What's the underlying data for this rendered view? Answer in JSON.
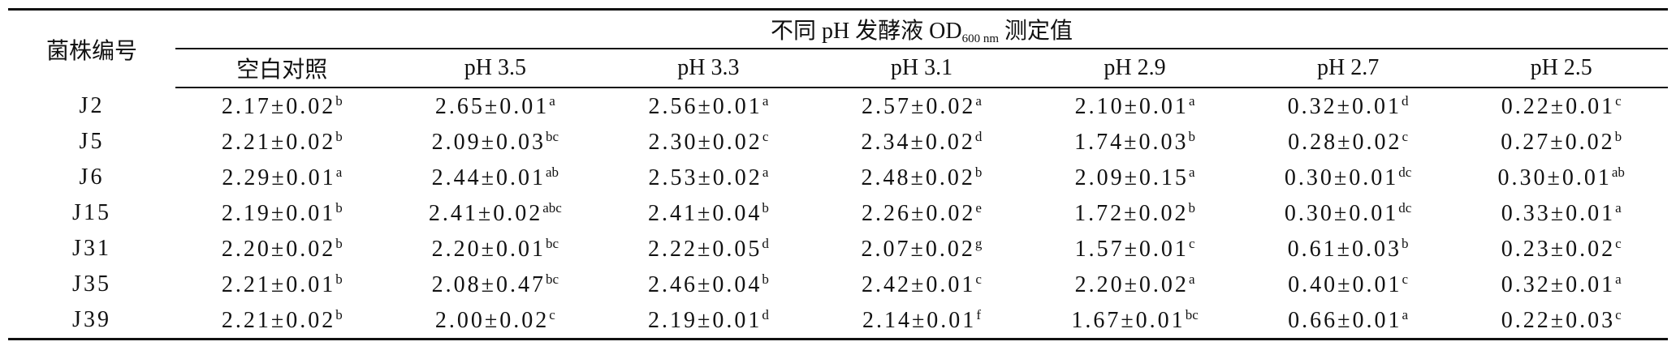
{
  "table": {
    "header": {
      "strain": "菌株编号",
      "title_main": "不同 pH 发酵液 OD",
      "title_sub": "600 nm",
      "title_end": "测定值",
      "columns": [
        "空白对照",
        "pH 3.5",
        "pH 3.3",
        "pH 3.1",
        "pH 2.9",
        "pH 2.7",
        "pH 2.5"
      ]
    },
    "rows": [
      {
        "strain": "J2",
        "cells": [
          {
            "value": "2.17±0.02",
            "sig": "b"
          },
          {
            "value": "2.65±0.01",
            "sig": "a"
          },
          {
            "value": "2.56±0.01",
            "sig": "a"
          },
          {
            "value": "2.57±0.02",
            "sig": "a"
          },
          {
            "value": "2.10±0.01",
            "sig": "a"
          },
          {
            "value": "0.32±0.01",
            "sig": "d"
          },
          {
            "value": "0.22±0.01",
            "sig": "c"
          }
        ]
      },
      {
        "strain": "J5",
        "cells": [
          {
            "value": "2.21±0.02",
            "sig": "b"
          },
          {
            "value": "2.09±0.03",
            "sig": "bc"
          },
          {
            "value": "2.30±0.02",
            "sig": "c"
          },
          {
            "value": "2.34±0.02",
            "sig": "d"
          },
          {
            "value": "1.74±0.03",
            "sig": "b"
          },
          {
            "value": "0.28±0.02",
            "sig": "c"
          },
          {
            "value": "0.27±0.02",
            "sig": "b"
          }
        ]
      },
      {
        "strain": "J6",
        "cells": [
          {
            "value": "2.29±0.01",
            "sig": "a"
          },
          {
            "value": "2.44±0.01",
            "sig": "ab"
          },
          {
            "value": "2.53±0.02",
            "sig": "a"
          },
          {
            "value": "2.48±0.02",
            "sig": "b"
          },
          {
            "value": "2.09±0.15",
            "sig": "a"
          },
          {
            "value": "0.30±0.01",
            "sig": "dc"
          },
          {
            "value": "0.30±0.01",
            "sig": "ab"
          }
        ]
      },
      {
        "strain": "J15",
        "cells": [
          {
            "value": "2.19±0.01",
            "sig": "b"
          },
          {
            "value": "2.41±0.02",
            "sig": "abc"
          },
          {
            "value": "2.41±0.04",
            "sig": "b"
          },
          {
            "value": "2.26±0.02",
            "sig": "e"
          },
          {
            "value": "1.72±0.02",
            "sig": "b"
          },
          {
            "value": "0.30±0.01",
            "sig": "dc"
          },
          {
            "value": "0.33±0.01",
            "sig": "a"
          }
        ]
      },
      {
        "strain": "J31",
        "cells": [
          {
            "value": "2.20±0.02",
            "sig": "b"
          },
          {
            "value": "2.20±0.01",
            "sig": "bc"
          },
          {
            "value": "2.22±0.05",
            "sig": "d"
          },
          {
            "value": "2.07±0.02",
            "sig": "g"
          },
          {
            "value": "1.57±0.01",
            "sig": "c"
          },
          {
            "value": "0.61±0.03",
            "sig": "b"
          },
          {
            "value": "0.23±0.02",
            "sig": "c"
          }
        ]
      },
      {
        "strain": "J35",
        "cells": [
          {
            "value": "2.21±0.01",
            "sig": "b"
          },
          {
            "value": "2.08±0.47",
            "sig": "bc"
          },
          {
            "value": "2.46±0.04",
            "sig": "b"
          },
          {
            "value": "2.42±0.01",
            "sig": "c"
          },
          {
            "value": "2.20±0.02",
            "sig": "a"
          },
          {
            "value": "0.40±0.01",
            "sig": "c"
          },
          {
            "value": "0.32±0.01",
            "sig": "a"
          }
        ]
      },
      {
        "strain": "J39",
        "cells": [
          {
            "value": "2.21±0.02",
            "sig": "b"
          },
          {
            "value": "2.00±0.02",
            "sig": "c"
          },
          {
            "value": "2.19±0.01",
            "sig": "d"
          },
          {
            "value": "2.14±0.01",
            "sig": "f"
          },
          {
            "value": "1.67±0.01",
            "sig": "bc"
          },
          {
            "value": "0.66±0.01",
            "sig": "a"
          },
          {
            "value": "0.22±0.03",
            "sig": "c"
          }
        ]
      }
    ]
  }
}
